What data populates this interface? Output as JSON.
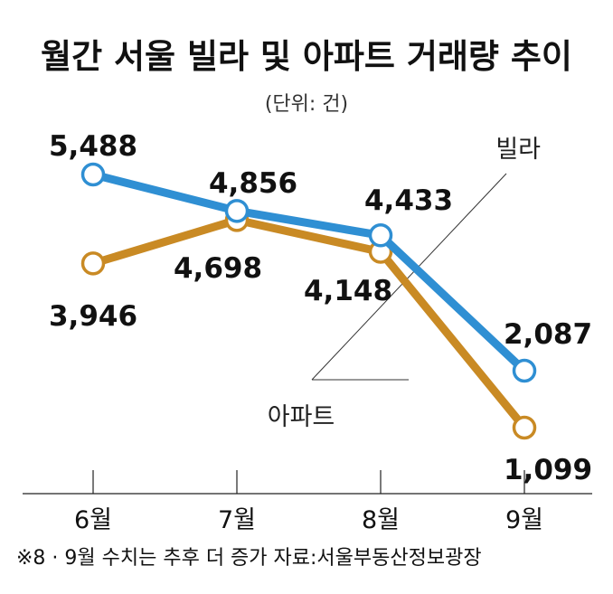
{
  "chart_data": {
    "type": "line",
    "title": "월간 서울 빌라 및 아파트 거래량 추이",
    "unit": "(단위: 건)",
    "categories": [
      "6월",
      "7월",
      "8월",
      "9월"
    ],
    "series": [
      {
        "name": "빌라",
        "values": [
          5488,
          4856,
          4433,
          2087
        ],
        "value_labels": [
          "5,488",
          "4,856",
          "4,433",
          "2,087"
        ],
        "color": "#2f8fd3"
      },
      {
        "name": "아파트",
        "values": [
          3946,
          4698,
          4148,
          1099
        ],
        "value_labels": [
          "3,946",
          "4,698",
          "4,148",
          "1,099"
        ],
        "color": "#c98a24"
      }
    ],
    "grid": false,
    "footnote": "※8 · 9월 수치는 추후 더 증가 자료:서울부동산정보광장"
  }
}
